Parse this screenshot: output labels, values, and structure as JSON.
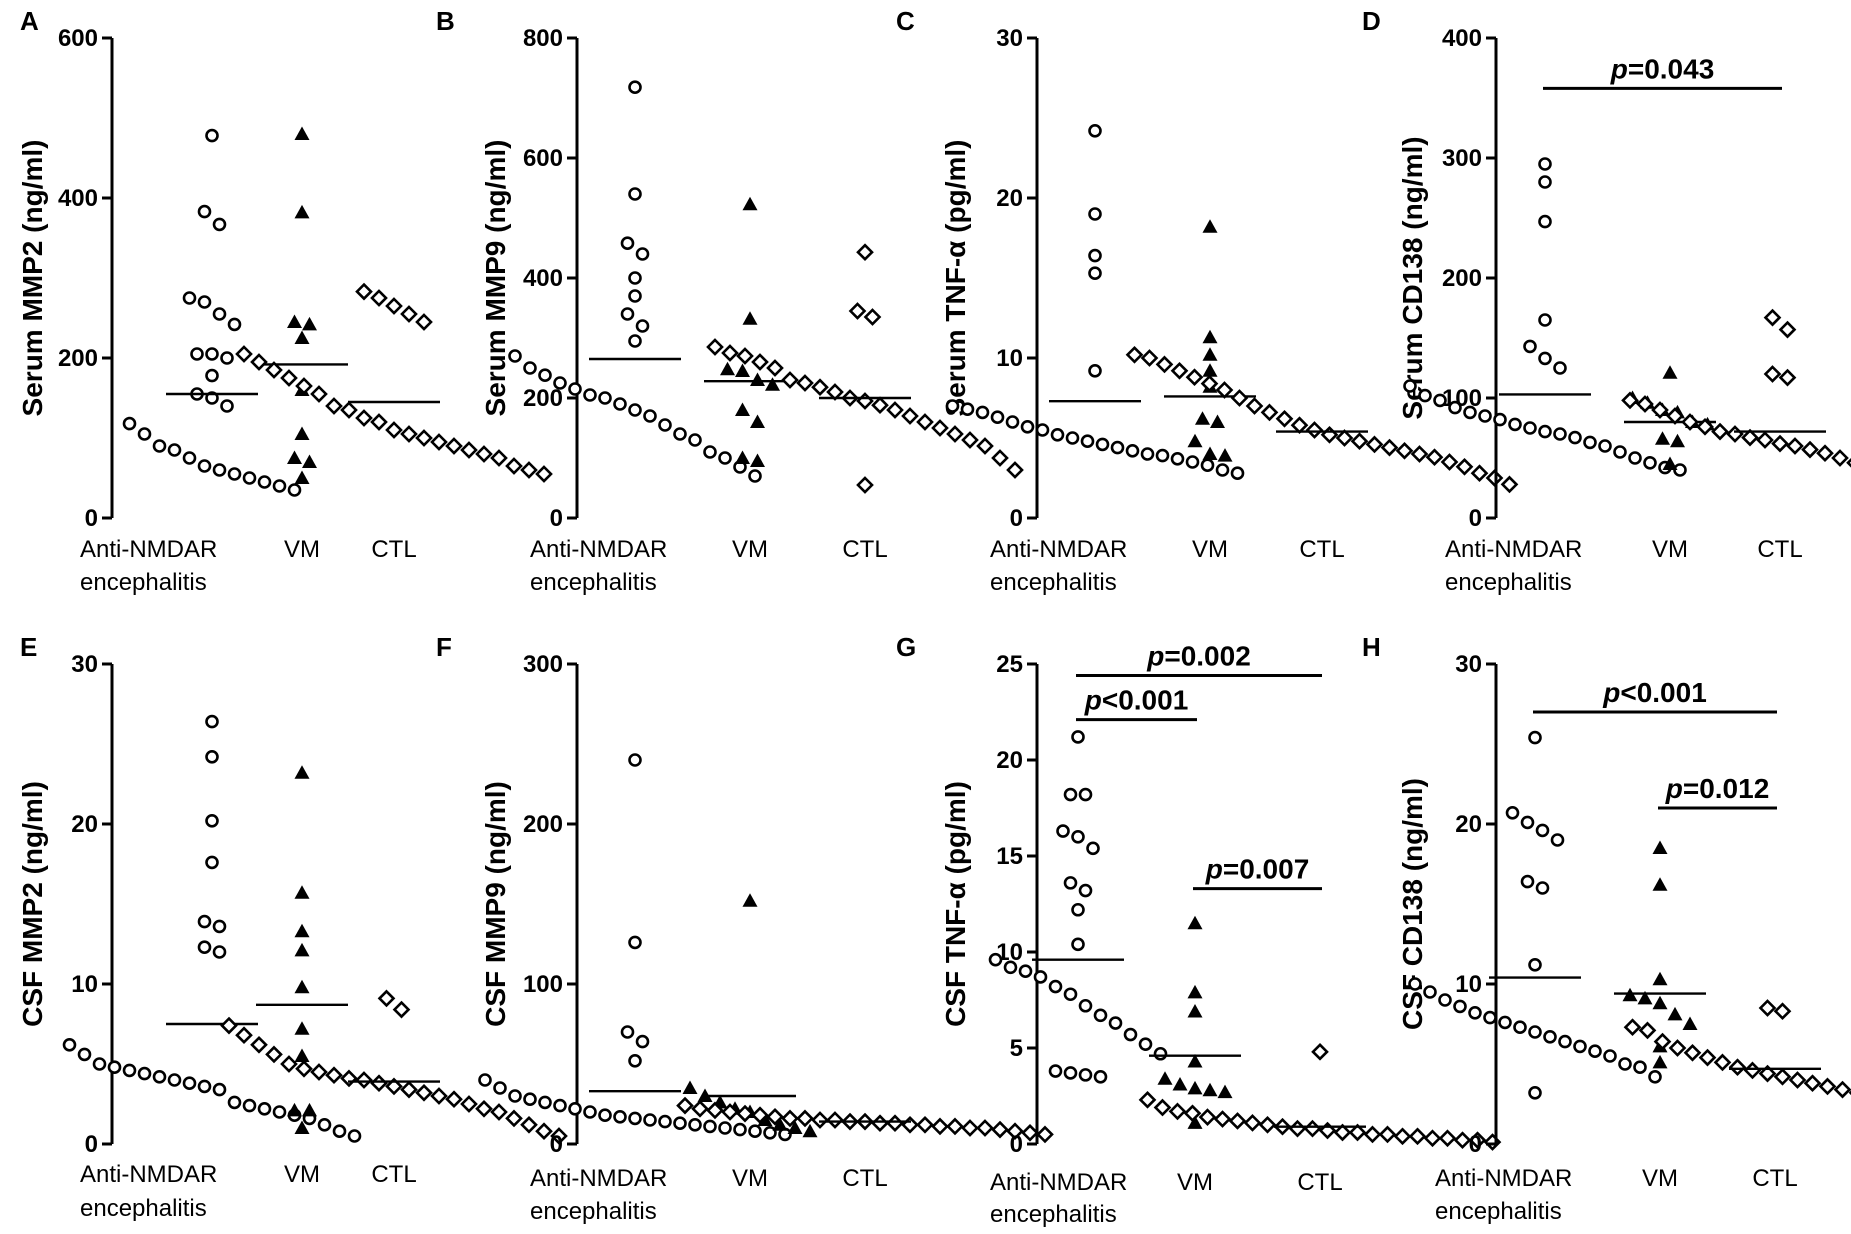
{
  "chart_data": [
    {
      "type": "scatter",
      "panel": "A",
      "ylabel": "Serum MMP2 (ng/ml)",
      "ylim": [
        0,
        600
      ],
      "yticks": [
        "0",
        "200",
        "400",
        "600"
      ],
      "categories": [
        "Anti-NMDAR|encephalitis",
        "VM",
        "CTL"
      ],
      "series": [
        {
          "name": "Anti-NMDAR encephalitis",
          "marker": "circle",
          "mean": 155,
          "values": [
            478,
            383,
            367,
            275,
            270,
            255,
            242,
            205,
            205,
            200,
            178,
            155,
            150,
            140,
            118,
            105,
            90,
            85,
            75,
            65,
            60,
            55,
            50,
            45,
            40,
            35
          ]
        },
        {
          "name": "VM",
          "marker": "triangle",
          "mean": 192,
          "values": [
            480,
            382,
            245,
            242,
            225,
            160,
            105,
            75,
            70,
            50
          ]
        },
        {
          "name": "CTL",
          "marker": "diamond",
          "mean": 145,
          "values": [
            283,
            275,
            265,
            255,
            245,
            205,
            195,
            185,
            175,
            165,
            155,
            140,
            135,
            125,
            120,
            110,
            105,
            100,
            95,
            90,
            85,
            80,
            75,
            65,
            60,
            55
          ]
        }
      ]
    },
    {
      "type": "scatter",
      "panel": "B",
      "ylabel": "Serum MMP9 (ng/ml)",
      "ylim": [
        0,
        800
      ],
      "yticks": [
        "0",
        "200",
        "400",
        "600",
        "800"
      ],
      "categories": [
        "Anti-NMDAR|encephalitis",
        "VM",
        "CTL"
      ],
      "series": [
        {
          "name": "Anti-NMDAR encephalitis",
          "marker": "circle",
          "mean": 265,
          "values": [
            718,
            540,
            458,
            440,
            400,
            370,
            340,
            320,
            295,
            270,
            250,
            238,
            225,
            215,
            205,
            200,
            190,
            180,
            170,
            155,
            140,
            130,
            110,
            100,
            85,
            70
          ]
        },
        {
          "name": "VM",
          "marker": "triangle",
          "mean": 228,
          "values": [
            523,
            332,
            248,
            245,
            230,
            222,
            180,
            160,
            100,
            95
          ]
        },
        {
          "name": "CTL",
          "marker": "diamond",
          "mean": 200,
          "values": [
            443,
            345,
            335,
            285,
            275,
            270,
            260,
            250,
            230,
            225,
            218,
            210,
            200,
            195,
            188,
            180,
            170,
            160,
            150,
            140,
            130,
            120,
            100,
            80,
            55
          ]
        }
      ]
    },
    {
      "type": "scatter",
      "panel": "C",
      "ylabel": "Serum TNF-α (pg/ml)",
      "ylim": [
        0,
        30
      ],
      "yticks": [
        "0",
        "10",
        "20",
        "30"
      ],
      "categories": [
        "Anti-NMDAR|encephalitis",
        "VM",
        "CTL"
      ],
      "series": [
        {
          "name": "Anti-NMDAR encephalitis",
          "marker": "circle",
          "mean": 7.3,
          "values": [
            24.2,
            19.0,
            16.4,
            15.3,
            9.2,
            7.0,
            6.8,
            6.6,
            6.3,
            6.0,
            5.7,
            5.5,
            5.2,
            5.0,
            4.8,
            4.6,
            4.4,
            4.2,
            4.0,
            3.9,
            3.7,
            3.5,
            3.3,
            3.0,
            2.8
          ]
        },
        {
          "name": "VM",
          "marker": "triangle",
          "mean": 7.6,
          "values": [
            18.2,
            11.3,
            10.2,
            9.2,
            8.2,
            6.2,
            6.0,
            4.8,
            4.0,
            3.9
          ]
        },
        {
          "name": "CTL",
          "marker": "diamond",
          "mean": 5.4,
          "values": [
            10.2,
            10.0,
            9.6,
            9.2,
            8.8,
            8.4,
            8.0,
            7.5,
            7.0,
            6.6,
            6.2,
            5.8,
            5.5,
            5.2,
            5.0,
            4.8,
            4.6,
            4.4,
            4.2,
            4.0,
            3.8,
            3.5,
            3.2,
            2.8,
            2.5,
            2.1
          ]
        }
      ]
    },
    {
      "type": "scatter",
      "panel": "D",
      "ylabel": "Serum CD138 (ng/ml)",
      "ylim": [
        0,
        400
      ],
      "yticks": [
        "0",
        "100",
        "200",
        "300",
        "400"
      ],
      "categories": [
        "Anti-NMDAR|encephalitis",
        "VM",
        "CTL"
      ],
      "annotations": [
        {
          "text": "p=0.043",
          "from": 0,
          "to": 2,
          "y": 358
        }
      ],
      "series": [
        {
          "name": "Anti-NMDAR encephalitis",
          "marker": "circle",
          "mean": 103,
          "values": [
            295,
            280,
            247,
            165,
            143,
            133,
            125,
            110,
            102,
            98,
            92,
            88,
            85,
            82,
            78,
            75,
            72,
            70,
            67,
            63,
            60,
            55,
            50,
            46,
            42,
            40
          ]
        },
        {
          "name": "VM",
          "marker": "triangle",
          "mean": 80,
          "values": [
            121,
            100,
            96,
            90,
            88,
            80,
            78,
            66,
            64,
            45
          ]
        },
        {
          "name": "CTL",
          "marker": "diamond",
          "mean": 72,
          "values": [
            167,
            157,
            120,
            117,
            98,
            95,
            90,
            85,
            80,
            76,
            72,
            70,
            67,
            65,
            62,
            60,
            57,
            54,
            50,
            46,
            42,
            38,
            35,
            31,
            28
          ]
        }
      ]
    },
    {
      "type": "scatter",
      "panel": "E",
      "ylabel": "CSF MMP2 (ng/ml)",
      "ylim": [
        0,
        30
      ],
      "yticks": [
        "0",
        "10",
        "20",
        "30"
      ],
      "categories": [
        "Anti-NMDAR|encephalitis",
        "VM",
        "CTL"
      ],
      "series": [
        {
          "name": "Anti-NMDAR encephalitis",
          "marker": "circle",
          "mean": 7.5,
          "values": [
            26.4,
            24.2,
            20.2,
            17.6,
            13.9,
            13.6,
            12.3,
            12.0,
            6.2,
            5.6,
            5.0,
            4.8,
            4.6,
            4.4,
            4.2,
            4.0,
            3.8,
            3.6,
            3.4,
            2.6,
            2.4,
            2.2,
            2.0,
            1.8,
            1.6,
            1.2,
            0.8,
            0.5
          ]
        },
        {
          "name": "VM",
          "marker": "triangle",
          "mean": 8.7,
          "values": [
            23.2,
            15.7,
            13.3,
            12.1,
            9.8,
            7.2,
            5.5,
            2.1,
            2.1,
            1.0
          ]
        },
        {
          "name": "CTL",
          "marker": "diamond",
          "mean": 3.9,
          "values": [
            9.1,
            8.4,
            7.4,
            6.8,
            6.2,
            5.6,
            5.0,
            4.7,
            4.5,
            4.3,
            4.1,
            4.0,
            3.8,
            3.6,
            3.4,
            3.2,
            3.0,
            2.8,
            2.5,
            2.2,
            2.0,
            1.6,
            1.2,
            0.8,
            0.5
          ]
        }
      ]
    },
    {
      "type": "scatter",
      "panel": "F",
      "ylabel": "CSF MMP9 (ng/ml)",
      "ylim": [
        0,
        300
      ],
      "yticks": [
        "0",
        "100",
        "200",
        "300"
      ],
      "categories": [
        "Anti-NMDAR|encephalitis",
        "VM",
        "CTL"
      ],
      "series": [
        {
          "name": "Anti-NMDAR encephalitis",
          "marker": "circle",
          "mean": 33,
          "values": [
            240,
            126,
            70,
            64,
            52,
            40,
            35,
            30,
            28,
            26,
            24,
            22,
            20,
            18,
            17,
            16,
            15,
            14,
            13,
            12,
            11,
            10,
            9,
            8,
            7,
            6
          ]
        },
        {
          "name": "VM",
          "marker": "triangle",
          "mean": 30,
          "values": [
            152,
            35,
            30,
            26,
            22,
            20,
            15,
            12,
            10,
            8
          ]
        },
        {
          "name": "CTL",
          "marker": "diamond",
          "mean": 14,
          "values": [
            24,
            22,
            21,
            20,
            19,
            18,
            17,
            16,
            16,
            15,
            15,
            14,
            14,
            13,
            13,
            12,
            12,
            11,
            11,
            10,
            10,
            9,
            8,
            7,
            6
          ]
        }
      ]
    },
    {
      "type": "scatter",
      "panel": "G",
      "ylabel": "CSF TNF-α (pg/ml)",
      "ylim": [
        0,
        25
      ],
      "yticks": [
        "0",
        "5",
        "10",
        "15",
        "20",
        "25"
      ],
      "categories": [
        "Anti-NMDAR|encephalitis",
        "VM",
        "CTL"
      ],
      "annotations": [
        {
          "text": "p=0.002",
          "from": 0,
          "to": 2,
          "y": 24.4
        },
        {
          "text": "p<0.001",
          "from": 0,
          "to": 1,
          "y": 22.1
        },
        {
          "text": "p=0.007",
          "from": 1,
          "to": 2,
          "y": 13.3
        }
      ],
      "series": [
        {
          "name": "Anti-NMDAR encephalitis",
          "marker": "circle",
          "mean": 9.6,
          "values": [
            21.2,
            18.2,
            18.2,
            16.3,
            16.0,
            15.4,
            13.6,
            13.2,
            12.2,
            10.4,
            9.6,
            9.2,
            9.0,
            8.7,
            8.2,
            7.8,
            7.2,
            6.7,
            6.3,
            5.7,
            5.2,
            4.7,
            3.8,
            3.7,
            3.6,
            3.5
          ]
        },
        {
          "name": "VM",
          "marker": "triangle",
          "mean": 4.6,
          "values": [
            11.5,
            7.9,
            6.9,
            4.3,
            3.4,
            3.1,
            2.9,
            2.8,
            2.7,
            1.1
          ]
        },
        {
          "name": "CTL",
          "marker": "diamond",
          "mean": 0.9,
          "values": [
            4.8,
            2.3,
            1.9,
            1.7,
            1.6,
            1.4,
            1.3,
            1.2,
            1.1,
            1.0,
            0.9,
            0.8,
            0.8,
            0.7,
            0.6,
            0.6,
            0.5,
            0.5,
            0.4,
            0.4,
            0.3,
            0.3,
            0.2,
            0.2,
            0.1
          ]
        }
      ]
    },
    {
      "type": "scatter",
      "panel": "H",
      "ylabel": "CSF CD138 (ng/ml)",
      "ylim": [
        0,
        30
      ],
      "yticks": [
        "0",
        "10",
        "20",
        "30"
      ],
      "categories": [
        "Anti-NMDAR|encephalitis",
        "VM",
        "CTL"
      ],
      "annotations": [
        {
          "text": "p<0.001",
          "from": 0,
          "to": 2,
          "y": 27.0
        },
        {
          "text": "p=0.012",
          "from": 1,
          "to": 2,
          "y": 21.0
        }
      ],
      "series": [
        {
          "name": "Anti-NMDAR encephalitis",
          "marker": "circle",
          "mean": 10.4,
          "values": [
            25.4,
            20.7,
            20.1,
            19.6,
            19.0,
            16.4,
            16.0,
            11.2,
            10.0,
            9.5,
            9.0,
            8.6,
            8.2,
            7.9,
            7.6,
            7.3,
            7.0,
            6.7,
            6.4,
            6.1,
            5.8,
            5.5,
            5.0,
            4.8,
            4.2,
            3.2
          ]
        },
        {
          "name": "VM",
          "marker": "triangle",
          "mean": 9.4,
          "values": [
            18.5,
            16.2,
            10.3,
            9.3,
            9.1,
            8.8,
            8.1,
            7.5,
            6.1,
            5.1
          ]
        },
        {
          "name": "CTL",
          "marker": "diamond",
          "mean": 4.7,
          "values": [
            8.5,
            8.3,
            7.3,
            7.1,
            6.4,
            6.0,
            5.7,
            5.4,
            5.1,
            4.8,
            4.6,
            4.4,
            4.2,
            4.0,
            3.8,
            3.6,
            3.4,
            3.2,
            3.0,
            2.8,
            2.5,
            2.3
          ]
        }
      ]
    }
  ]
}
